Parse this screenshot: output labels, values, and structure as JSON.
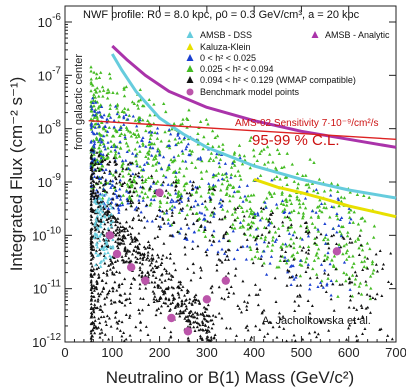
{
  "chart_data": {
    "type": "scatter",
    "header": "NWF profile:  R0 = 8.0 kpc,  ρ0 = 0.3 GeV/cm³,  a = 20 kpc",
    "xlabel": "Neutralino or B(1) Mass (GeV/c²)",
    "ylabel": "Integrated Flux (cm⁻² s⁻¹)",
    "xlim": [
      0,
      700
    ],
    "ylim_log10": [
      -12,
      -5.7
    ],
    "x_ticks": [
      "0",
      "100",
      "200",
      "300",
      "400",
      "500",
      "600",
      "700"
    ],
    "y_ticks": [
      {
        "base": "10",
        "exp": "-6"
      },
      {
        "base": "10",
        "exp": "-7"
      },
      {
        "base": "10",
        "exp": "-8"
      },
      {
        "base": "10",
        "exp": "-9"
      },
      {
        "base": "10",
        "exp": "-10"
      },
      {
        "base": "10",
        "exp": "-11"
      },
      {
        "base": "10",
        "exp": "-12"
      }
    ],
    "vertical_annotation": "from galactic center",
    "sensitivity_label": "AMS-02 Sensitivity 7·10⁻⁹/cm²/s",
    "confidence_label": "95-99 % C.L.",
    "credit": "A. Jacholkowska et al.",
    "legend": [
      {
        "label": "AMSB - DSS",
        "marker": "triangle",
        "color": "#66ccdd"
      },
      {
        "label": "AMSB - Analytic",
        "marker": "triangle",
        "color": "#aa33aa"
      },
      {
        "label": "Kaluza-Klein",
        "marker": "triangle",
        "color": "#e8e000"
      },
      {
        "label": "0      <   h² < 0.025",
        "marker": "triangle",
        "color": "#1a3fd0"
      },
      {
        "label": "0.025 <   h² < 0.094",
        "marker": "triangle",
        "color": "#44bb22"
      },
      {
        "label": "0.094 <   h² < 0.129 (WMAP compatible)",
        "marker": "triangle",
        "color": "#111111"
      },
      {
        "label": "Benchmark model points",
        "marker": "circle",
        "color": "#bb55aa"
      }
    ],
    "series": [
      {
        "name": "AMSB - Analytic",
        "style": "line",
        "color": "#aa33aa",
        "x": [
          100,
          130,
          170,
          220,
          300,
          400,
          500,
          600,
          700
        ],
        "y_log10": [
          -6.45,
          -6.7,
          -7.0,
          -7.3,
          -7.6,
          -7.85,
          -8.05,
          -8.2,
          -8.35
        ]
      },
      {
        "name": "AMSB - DSS",
        "style": "line",
        "color": "#66ccdd",
        "x": [
          100,
          120,
          150,
          200,
          250,
          300,
          400,
          500,
          600,
          700
        ],
        "y_log10": [
          -6.6,
          -6.9,
          -7.3,
          -7.8,
          -8.1,
          -8.35,
          -8.7,
          -8.95,
          -9.15,
          -9.3
        ]
      },
      {
        "name": "Kaluza-Klein",
        "style": "line",
        "color": "#e8e000",
        "x": [
          400,
          450,
          500,
          550,
          600,
          650,
          700
        ],
        "y_log10": [
          -8.95,
          -9.1,
          -9.2,
          -9.32,
          -9.45,
          -9.55,
          -9.65
        ]
      },
      {
        "name": "AMS-02 Sensitivity",
        "style": "line",
        "color": "#dd2222",
        "x": [
          50,
          700
        ],
        "y_log10": [
          -7.85,
          -8.2
        ]
      },
      {
        "name": "Benchmark model points",
        "style": "points",
        "color": "#bb55aa",
        "x": [
          95,
          110,
          140,
          170,
          200,
          225,
          260,
          300,
          340,
          575
        ],
        "y_log10": [
          -10.0,
          -10.35,
          -10.6,
          -10.85,
          -9.2,
          -11.55,
          -11.8,
          -11.2,
          -10.85,
          -10.3
        ]
      }
    ]
  }
}
